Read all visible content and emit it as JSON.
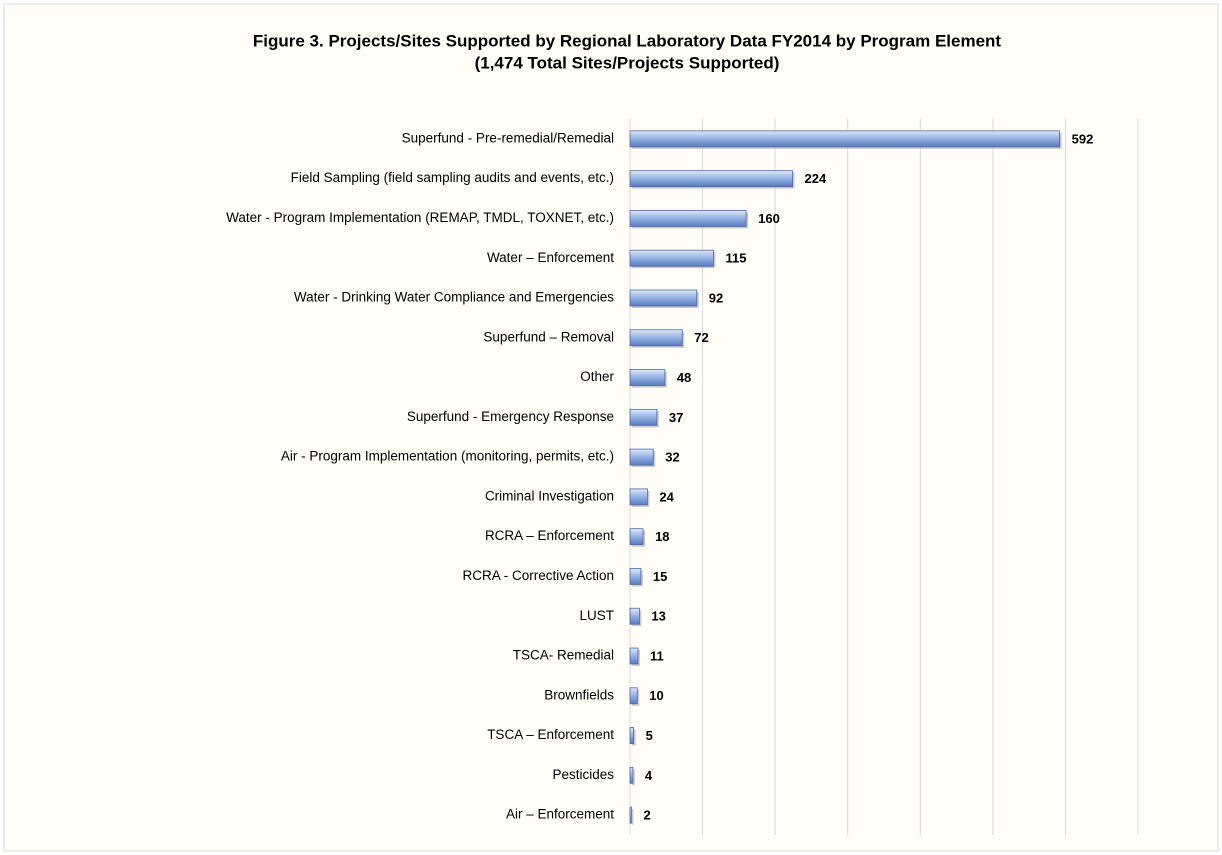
{
  "chart_data": {
    "type": "bar",
    "orientation": "horizontal",
    "title": "Figure 3.  Projects/Sites Supported by Regional Laboratory Data FY2014 by Program Element",
    "subtitle": "(1,474 Total Sites/Projects Supported)",
    "categories": [
      "Superfund - Pre-remedial/Remedial",
      "Field Sampling (field sampling audits and events, etc.)",
      "Water - Program Implementation (REMAP, TMDL, TOXNET, etc.)",
      "Water – Enforcement",
      "Water - Drinking Water Compliance and Emergencies",
      "Superfund – Removal",
      "Other",
      "Superfund - Emergency Response",
      "Air - Program Implementation (monitoring, permits, etc.)",
      "Criminal Investigation",
      "RCRA – Enforcement",
      "RCRA - Corrective Action",
      "LUST",
      "TSCA- Remedial",
      "Brownfields",
      "TSCA – Enforcement",
      "Pesticides",
      "Air – Enforcement"
    ],
    "values": [
      592,
      224,
      160,
      115,
      92,
      72,
      48,
      37,
      32,
      24,
      18,
      15,
      13,
      11,
      10,
      5,
      4,
      2
    ],
    "color": "#7b9bd6",
    "xlim": [
      0,
      700
    ],
    "xticks": [
      0,
      100,
      200,
      300,
      400,
      500,
      600,
      700
    ],
    "grid": true
  }
}
